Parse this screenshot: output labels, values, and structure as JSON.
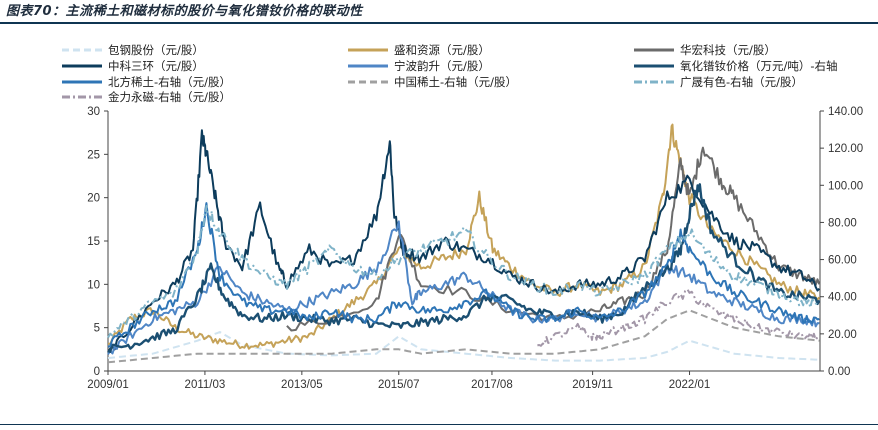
{
  "title": "图表70：主流稀土和磁材标的股价与氧化镨钕价格的联动性",
  "chart_data": {
    "type": "line",
    "title": "",
    "xlabel": "",
    "ylabel": "",
    "y2label": "",
    "x_ticks": [
      "2009/01",
      "2011/03",
      "2013/05",
      "2015/07",
      "2017/08",
      "2019/11",
      "2022/01"
    ],
    "x_range": [
      "2009/01",
      "2024/12"
    ],
    "ylim": [
      0,
      30
    ],
    "y_ticks": [
      "0",
      "5",
      "10",
      "15",
      "20",
      "25",
      "30"
    ],
    "y2lim": [
      0,
      140
    ],
    "y2_ticks": [
      "0.00",
      "20.00",
      "40.00",
      "60.00",
      "80.00",
      "100.00",
      "120.00",
      "140.00"
    ],
    "legend_position": "top",
    "series": [
      {
        "name": "包钢股份（元/股）",
        "color": "#cfe3f0",
        "style": "dashed",
        "axis": "left",
        "t": [
          2009.0,
          2010.0,
          2011.0,
          2011.5,
          2012.0,
          2013.0,
          2014.0,
          2015.0,
          2015.5,
          2016.0,
          2017.0,
          2018.0,
          2019.0,
          2020.0,
          2021.0,
          2021.5,
          2022.0,
          2023.0,
          2024.0,
          2024.9
        ],
        "y": [
          1.5,
          2.0,
          3.5,
          4.5,
          3.0,
          2.0,
          1.8,
          2.0,
          4.0,
          2.5,
          2.0,
          1.5,
          1.2,
          1.2,
          1.5,
          2.2,
          3.5,
          2.0,
          1.5,
          1.3
        ]
      },
      {
        "name": "盛和资源（元/股）",
        "color": "#c5a258",
        "style": "solid",
        "axis": "left",
        "t": [
          2009.0,
          2009.5,
          2010.0,
          2010.5,
          2011.0,
          2011.5,
          2012.0,
          2012.5,
          2013.0,
          2013.5,
          2014.0,
          2014.5,
          2015.0,
          2015.5,
          2016.0,
          2016.5,
          2017.0,
          2017.3,
          2017.6,
          2018.0,
          2018.5,
          2019.0,
          2019.5,
          2020.0,
          2020.5,
          2021.0,
          2021.4,
          2021.6,
          2021.8,
          2022.0,
          2022.5,
          2023.0,
          2023.5,
          2024.0,
          2024.5,
          2024.9
        ],
        "y": [
          3.0,
          6.0,
          7.0,
          5.0,
          4.0,
          3.5,
          3.0,
          3.0,
          3.5,
          4.0,
          6.0,
          8.0,
          10.0,
          14.0,
          12.0,
          13.0,
          14.0,
          20.0,
          14.0,
          12.0,
          10.0,
          9.0,
          10.0,
          9.0,
          10.0,
          12.0,
          20.0,
          28.0,
          24.0,
          20.0,
          16.0,
          14.0,
          12.0,
          10.0,
          9.0,
          8.5
        ]
      },
      {
        "name": "华宏科技（元/股）",
        "color": "#6b6b6b",
        "style": "solid",
        "axis": "left",
        "t": [
          2013.0,
          2014.0,
          2015.0,
          2015.5,
          2016.0,
          2017.0,
          2018.0,
          2019.0,
          2020.0,
          2020.5,
          2021.0,
          2021.5,
          2021.8,
          2022.0,
          2022.3,
          2022.7,
          2023.0,
          2023.5,
          2024.0,
          2024.5,
          2024.9
        ],
        "y": [
          5.0,
          6.0,
          8.0,
          16.0,
          10.0,
          9.0,
          7.0,
          6.0,
          7.0,
          8.0,
          9.0,
          14.0,
          24.0,
          20.0,
          26.0,
          22.0,
          20.0,
          16.0,
          12.0,
          11.0,
          10.0
        ]
      },
      {
        "name": "中科三环（元/股）",
        "color": "#0d3c5c",
        "style": "solid",
        "axis": "left",
        "t": [
          2009.0,
          2009.5,
          2010.0,
          2010.5,
          2010.9,
          2011.1,
          2011.2,
          2011.4,
          2011.6,
          2012.0,
          2012.4,
          2012.8,
          2013.0,
          2013.5,
          2014.0,
          2014.5,
          2015.0,
          2015.3,
          2015.4,
          2015.6,
          2016.0,
          2016.5,
          2017.0,
          2017.5,
          2018.0,
          2018.5,
          2019.0,
          2019.5,
          2020.0,
          2020.5,
          2021.0,
          2021.5,
          2022.0,
          2022.5,
          2023.0,
          2023.5,
          2024.0,
          2024.5,
          2024.9
        ],
        "y": [
          2.0,
          5.0,
          8.0,
          10.0,
          14.0,
          27.0,
          25.0,
          20.0,
          15.0,
          12.0,
          19.0,
          12.0,
          10.0,
          14.0,
          12.0,
          13.0,
          18.0,
          26.5,
          18.0,
          14.0,
          13.0,
          15.0,
          14.0,
          13.0,
          11.0,
          10.0,
          9.0,
          10.0,
          10.0,
          11.0,
          13.0,
          20.0,
          22.0,
          18.0,
          15.0,
          14.0,
          12.0,
          11.0,
          9.5
        ]
      },
      {
        "name": "宁波韵升（元/股）",
        "color": "#4f86c6",
        "style": "solid",
        "axis": "left",
        "t": [
          2009.0,
          2009.5,
          2010.0,
          2010.5,
          2011.0,
          2011.5,
          2012.0,
          2012.5,
          2013.0,
          2013.5,
          2014.0,
          2014.5,
          2015.0,
          2015.5,
          2015.8,
          2016.0,
          2016.5,
          2017.0,
          2017.5,
          2018.0,
          2018.5,
          2019.0,
          2019.5,
          2020.0,
          2020.5,
          2021.0,
          2021.5,
          2022.0,
          2022.5,
          2023.0,
          2023.5,
          2024.0,
          2024.5,
          2024.9
        ],
        "y": [
          2.0,
          4.0,
          6.0,
          7.0,
          8.0,
          12.0,
          9.0,
          8.0,
          7.0,
          8.0,
          9.0,
          10.0,
          12.0,
          17.0,
          8.0,
          9.0,
          10.0,
          11.0,
          9.0,
          7.0,
          6.0,
          6.0,
          7.0,
          6.0,
          7.0,
          8.0,
          12.0,
          11.0,
          9.0,
          8.0,
          7.0,
          6.0,
          6.0,
          5.5
        ]
      },
      {
        "name": "氧化镨钕价格（万元/吨）-右轴",
        "color": "#1b4f72",
        "style": "solid",
        "axis": "right",
        "t": [
          2009.0,
          2009.5,
          2010.0,
          2010.5,
          2011.0,
          2011.3,
          2011.6,
          2012.0,
          2012.5,
          2013.0,
          2013.5,
          2014.0,
          2014.5,
          2015.0,
          2015.5,
          2016.0,
          2016.5,
          2017.0,
          2017.5,
          2018.0,
          2018.5,
          2019.0,
          2019.5,
          2020.0,
          2020.5,
          2021.0,
          2021.5,
          2021.8,
          2022.0,
          2022.2,
          2022.5,
          2023.0,
          2023.5,
          2024.0,
          2024.5,
          2024.9
        ],
        "y": [
          12.0,
          14.0,
          18.0,
          22.0,
          40.0,
          55.0,
          40.0,
          30.0,
          28.0,
          30.0,
          28.0,
          27.0,
          28.0,
          25.0,
          24.0,
          26.0,
          28.0,
          30.0,
          40.0,
          38.0,
          32.0,
          30.0,
          32.0,
          28.0,
          32.0,
          45.0,
          55.0,
          65.0,
          85.0,
          100.0,
          75.0,
          60.0,
          50.0,
          42.0,
          40.0,
          38.0
        ]
      },
      {
        "name": "北方稀土-右轴（元/股）",
        "color": "#2e75b6",
        "style": "solid",
        "axis": "left",
        "t": [
          2009.0,
          2009.5,
          2010.0,
          2010.5,
          2011.0,
          2011.2,
          2011.5,
          2012.0,
          2012.5,
          2013.0,
          2013.5,
          2014.0,
          2014.5,
          2015.0,
          2015.5,
          2016.0,
          2016.5,
          2017.0,
          2017.5,
          2018.0,
          2018.5,
          2019.0,
          2019.5,
          2020.0,
          2020.5,
          2021.0,
          2021.5,
          2021.8,
          2022.0,
          2022.5,
          2023.0,
          2023.5,
          2024.0,
          2024.5,
          2024.9
        ],
        "y": [
          3.0,
          5.0,
          7.0,
          8.0,
          14.0,
          19.0,
          11.0,
          8.0,
          7.0,
          7.0,
          6.0,
          7.0,
          6.0,
          6.0,
          8.0,
          7.0,
          7.0,
          8.0,
          9.0,
          7.0,
          6.0,
          6.0,
          7.0,
          6.0,
          7.0,
          9.0,
          12.0,
          16.0,
          14.0,
          11.0,
          9.0,
          8.0,
          7.0,
          6.0,
          6.0
        ]
      },
      {
        "name": "中国稀土-右轴（元/股）",
        "color": "#a0a0a0",
        "style": "dashed",
        "axis": "left",
        "t": [
          2009.0,
          2010.0,
          2011.0,
          2011.5,
          2012.0,
          2013.0,
          2014.0,
          2015.0,
          2015.5,
          2016.0,
          2017.0,
          2018.0,
          2019.0,
          2020.0,
          2021.0,
          2021.5,
          2022.0,
          2023.0,
          2024.0,
          2024.9
        ],
        "y": [
          1.0,
          1.5,
          2.0,
          2.0,
          2.0,
          2.0,
          2.0,
          2.5,
          2.5,
          2.0,
          2.5,
          2.0,
          2.0,
          2.5,
          4.0,
          6.0,
          7.0,
          5.0,
          4.0,
          3.5
        ]
      },
      {
        "name": "广晟有色-右轴（元/股）",
        "color": "#7fb3c8",
        "style": "dashdot",
        "axis": "left",
        "t": [
          2009.0,
          2009.5,
          2010.0,
          2010.5,
          2011.0,
          2011.2,
          2011.5,
          2012.0,
          2012.5,
          2013.0,
          2013.5,
          2014.0,
          2014.5,
          2015.0,
          2015.5,
          2016.0,
          2016.5,
          2017.0,
          2017.5,
          2018.0,
          2018.5,
          2019.0,
          2019.5,
          2020.0,
          2020.5,
          2021.0,
          2021.5,
          2022.0,
          2022.5,
          2023.0,
          2023.5,
          2024.0,
          2024.5,
          2024.9
        ],
        "y": [
          4.0,
          6.0,
          8.0,
          9.0,
          14.0,
          19.0,
          16.0,
          13.0,
          11.0,
          10.0,
          12.0,
          14.0,
          12.0,
          11.0,
          13.0,
          14.0,
          15.0,
          16.0,
          13.0,
          11.0,
          10.0,
          9.0,
          10.0,
          9.0,
          10.0,
          11.0,
          14.0,
          16.0,
          13.0,
          11.0,
          10.0,
          9.0,
          8.0,
          7.5
        ]
      },
      {
        "name": "金力永磁-右轴（元/股）",
        "color": "#a397a8",
        "style": "dashdot",
        "axis": "left",
        "t": [
          2018.6,
          2019.0,
          2019.5,
          2019.8,
          2020.0,
          2020.5,
          2021.0,
          2021.5,
          2022.0,
          2022.5,
          2023.0,
          2023.5,
          2024.0,
          2024.5,
          2024.9
        ],
        "y": [
          3.0,
          4.0,
          5.0,
          4.0,
          4.0,
          5.0,
          6.0,
          8.0,
          9.0,
          7.0,
          6.0,
          5.0,
          4.5,
          4.0,
          4.0
        ]
      }
    ]
  }
}
